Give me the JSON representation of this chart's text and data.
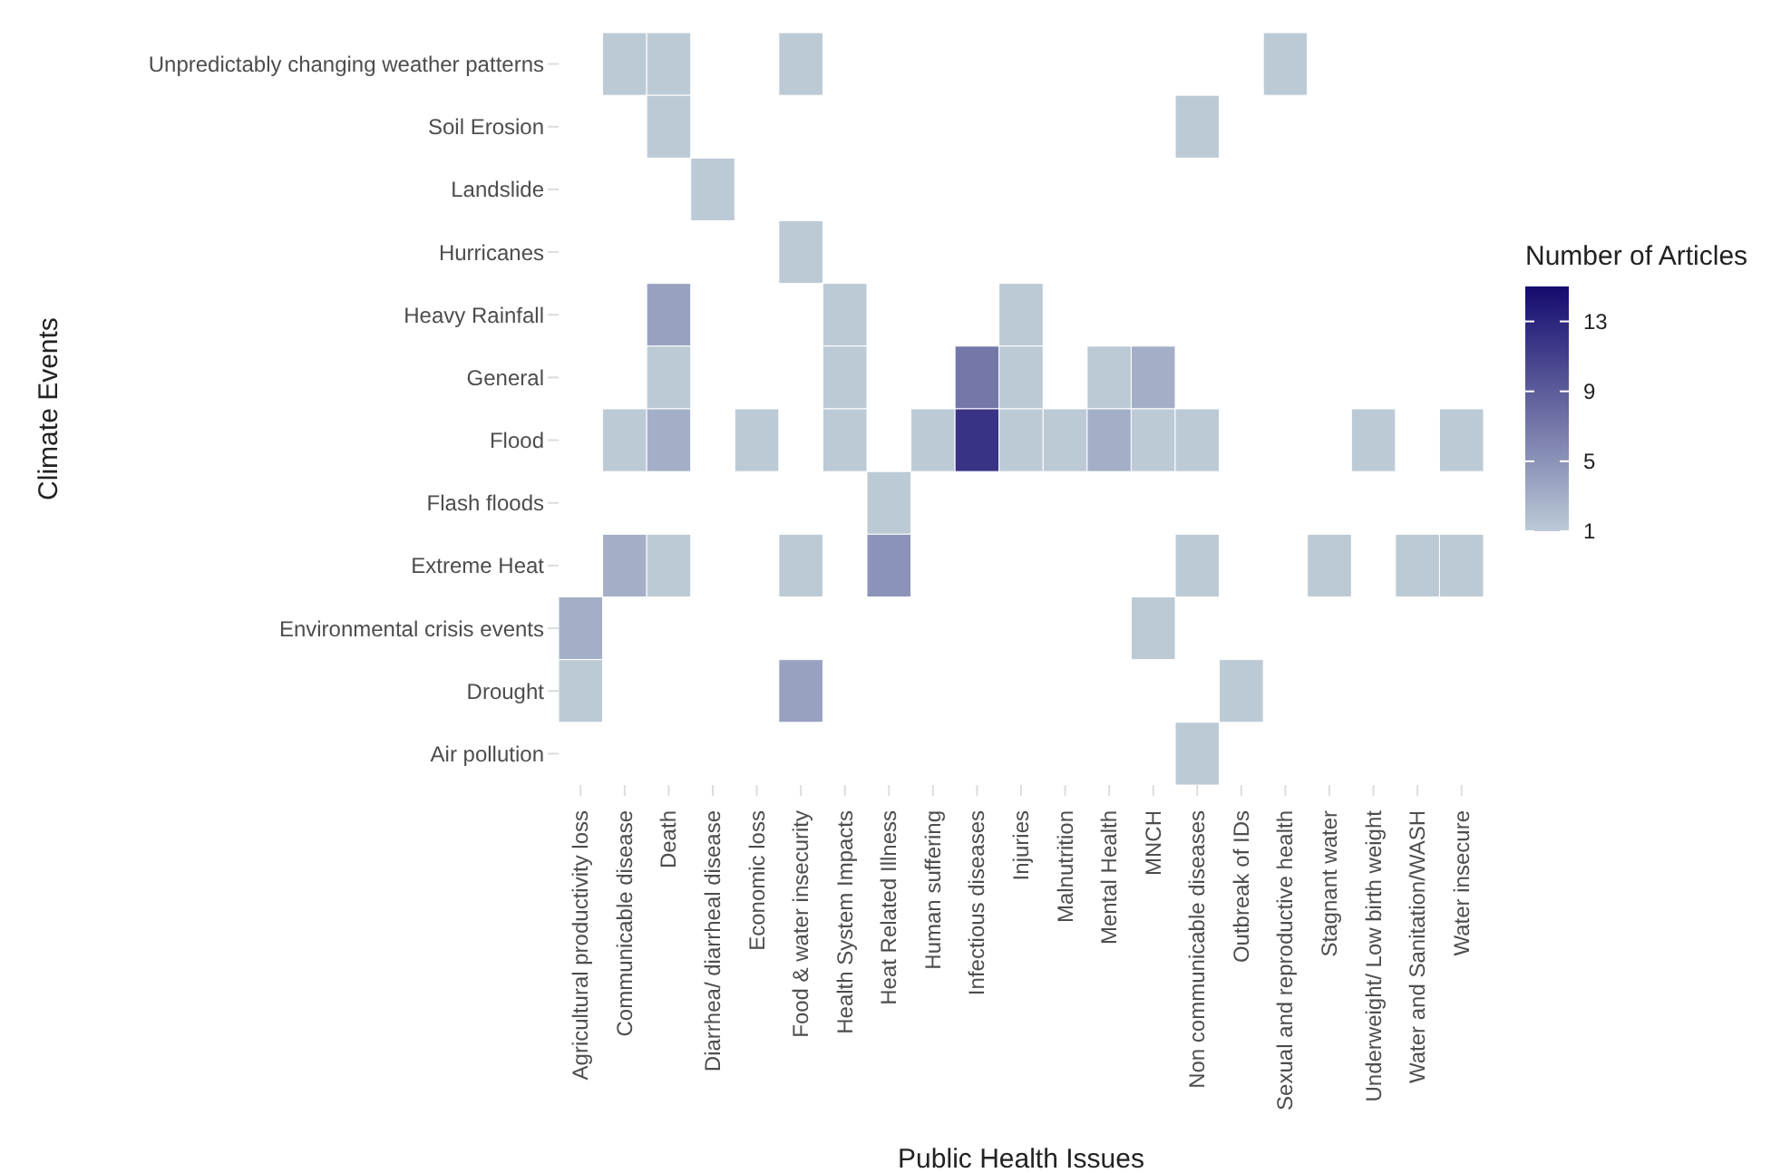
{
  "chart_data": {
    "type": "heatmap",
    "xlabel": "Public Health Issues",
    "ylabel": "Climate Events",
    "clabel": "Number of Articles",
    "categories": [
      "Agricultural productivity loss",
      "Communicable disease",
      "Death",
      "Diarrhea/ diarrheal disease",
      "Economic loss",
      "Food & water insecurity",
      "Health System Impacts",
      "Heat Related Illness",
      "Human suffering",
      "Infectious diseases",
      "Injuries",
      "Malnutrition",
      "Mental Health",
      "MNCH",
      "Non communicable diseases",
      "Outbreak of IDs",
      "Sexual and reproductive health",
      "Stagnant water",
      "Underweight/ Low birth weight",
      "Water and Sanitation/WASH",
      "Water insecure"
    ],
    "y_categories": [
      "Unpredictably changing weather patterns",
      "Soil Erosion",
      "Landslide",
      "Hurricanes",
      "Heavy Rainfall",
      "General",
      "Flood",
      "Flash floods",
      "Extreme Heat",
      "Environmental crisis events",
      "Drought",
      "Air pollution"
    ],
    "cells": [
      [
        null,
        1,
        1,
        null,
        null,
        1,
        null,
        null,
        null,
        null,
        null,
        null,
        null,
        null,
        null,
        null,
        1,
        null,
        null,
        null,
        null
      ],
      [
        null,
        null,
        1,
        null,
        null,
        null,
        null,
        null,
        null,
        null,
        null,
        null,
        null,
        null,
        1,
        null,
        null,
        null,
        null,
        null,
        null
      ],
      [
        null,
        null,
        null,
        1,
        null,
        null,
        null,
        null,
        null,
        null,
        null,
        null,
        null,
        null,
        null,
        null,
        null,
        null,
        null,
        null,
        null
      ],
      [
        null,
        null,
        null,
        null,
        null,
        1,
        null,
        null,
        null,
        null,
        null,
        null,
        null,
        null,
        null,
        null,
        null,
        null,
        null,
        null,
        null
      ],
      [
        null,
        null,
        4,
        null,
        null,
        null,
        1,
        null,
        null,
        null,
        1,
        null,
        null,
        null,
        null,
        null,
        null,
        null,
        null,
        null,
        null
      ],
      [
        null,
        null,
        1,
        null,
        null,
        null,
        1,
        null,
        null,
        7,
        1,
        null,
        1,
        3,
        null,
        null,
        null,
        null,
        null,
        null,
        null
      ],
      [
        null,
        1,
        3,
        null,
        1,
        null,
        1,
        null,
        1,
        12,
        1,
        1,
        3,
        1,
        1,
        null,
        null,
        null,
        1,
        null,
        1
      ],
      [
        null,
        null,
        null,
        null,
        null,
        null,
        null,
        1,
        null,
        null,
        null,
        null,
        null,
        null,
        null,
        null,
        null,
        null,
        null,
        null,
        null
      ],
      [
        null,
        3,
        1,
        null,
        null,
        1,
        null,
        5,
        null,
        null,
        null,
        null,
        null,
        null,
        1,
        null,
        null,
        1,
        null,
        1,
        1
      ],
      [
        3,
        null,
        null,
        null,
        null,
        null,
        null,
        null,
        null,
        null,
        null,
        null,
        null,
        1,
        null,
        null,
        null,
        null,
        null,
        null,
        null
      ],
      [
        1,
        null,
        null,
        null,
        null,
        4,
        null,
        null,
        null,
        null,
        null,
        null,
        null,
        null,
        null,
        1,
        null,
        null,
        null,
        null,
        null
      ],
      [
        null,
        null,
        null,
        null,
        null,
        null,
        null,
        null,
        null,
        null,
        null,
        null,
        null,
        null,
        1,
        null,
        null,
        null,
        null,
        null,
        null
      ]
    ],
    "clim": [
      1,
      15
    ],
    "cticks": [
      1,
      5,
      9,
      13
    ],
    "colors": [
      "#bccad6",
      "#140a6e"
    ]
  }
}
